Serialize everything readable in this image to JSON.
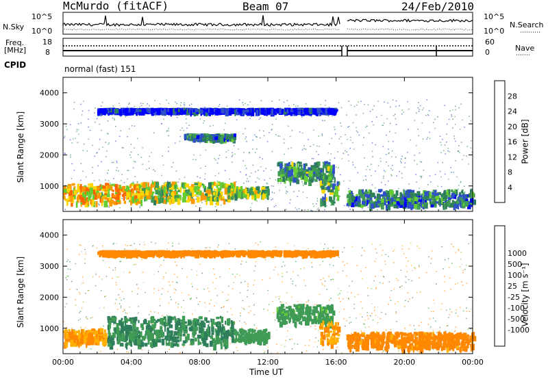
{
  "header": {
    "station": "McMurdo (fitACF)",
    "beam": "Beam 07",
    "date": "24/Feb/2010"
  },
  "top_strip": {
    "nsky_label": "N.Sky",
    "nsky_ticks": [
      "10^5",
      "10^0"
    ],
    "nsearch_label": "N.Search",
    "nsearch_ticks": [
      "10^5",
      "10^0"
    ],
    "freq_label": "Freq.",
    "freq_unit": "[MHz]",
    "freq_ticks": [
      "18",
      "8"
    ],
    "nave_label": "Nave",
    "nave_ticks": [
      "60",
      "0"
    ],
    "cpid_label": "CPID",
    "cpid_value": "normal (fast) 151"
  },
  "colors": {
    "power_scale": [
      "#0000ff",
      "#3050c8",
      "#2e7d5b",
      "#3f9b55",
      "#66cc33",
      "#ffd700",
      "#ff9900",
      "#ff6600",
      "#ff1a00"
    ],
    "velocity_scale": [
      "#ff0000",
      "#ff4d00",
      "#ff8800",
      "#ffb000",
      "#c8c8c8",
      "#c8c8c8",
      "#66cc33",
      "#3f9b55",
      "#2e7d5b",
      "#3050c8",
      "#0000ff"
    ]
  },
  "chart_data": [
    {
      "type": "heatmap",
      "panel": "power",
      "ylabel": "Slant Range [km]",
      "yticks": [
        "1000",
        "2000",
        "3000",
        "4000"
      ],
      "ylim": [
        180,
        4500
      ],
      "xlim": [
        0,
        24
      ],
      "xticks": [
        "00:00",
        "04:00",
        "08:00",
        "12:00",
        "16:00",
        "20:00",
        "00:00"
      ],
      "colorbar_label": "Power [dB]",
      "colorbar_ticks": [
        "4",
        "8",
        "12",
        "16",
        "20",
        "24",
        "28"
      ],
      "colorbar_range": [
        0,
        32
      ],
      "echo_regions": [
        {
          "t0": 0.0,
          "t1": 4.5,
          "r0": 500,
          "r1": 1100,
          "value": 28
        },
        {
          "t0": 4.5,
          "t1": 10.0,
          "r0": 550,
          "r1": 1150,
          "value": 24
        },
        {
          "t0": 10.0,
          "t1": 12.0,
          "r0": 700,
          "r1": 1000,
          "value": 22
        },
        {
          "t0": 12.5,
          "t1": 15.8,
          "r0": 1200,
          "r1": 1800,
          "value": 18
        },
        {
          "t0": 15.0,
          "t1": 16.1,
          "r0": 500,
          "r1": 1400,
          "value": 20
        },
        {
          "t0": 16.6,
          "t1": 24.0,
          "r0": 400,
          "r1": 900,
          "value": 16
        },
        {
          "t0": 2.0,
          "t1": 16.0,
          "r0": 3450,
          "r1": 3520,
          "value": 8
        },
        {
          "t0": 7.0,
          "t1": 10.0,
          "r0": 2550,
          "r1": 2700,
          "value": 16
        }
      ]
    },
    {
      "type": "heatmap",
      "panel": "velocity",
      "ylabel": "Slant Range [km]",
      "yticks": [
        "1000",
        "2000",
        "3000",
        "4000"
      ],
      "ylim": [
        180,
        4500
      ],
      "xlim": [
        0,
        24
      ],
      "xticks": [
        "00:00",
        "04:00",
        "08:00",
        "12:00",
        "16:00",
        "20:00",
        "00:00"
      ],
      "xlabel": "Time UT",
      "colorbar_label": "Velocity [m s⁻¹]",
      "colorbar_ticks": [
        "-1000",
        "-500",
        "-100",
        "-25",
        "25",
        "100",
        "500",
        "1000"
      ],
      "colorbar_range": [
        -1200,
        1200
      ],
      "echo_regions": [
        {
          "t0": 0.0,
          "t1": 2.5,
          "r0": 550,
          "r1": 1000,
          "value": -100
        },
        {
          "t0": 2.5,
          "t1": 10.0,
          "r0": 500,
          "r1": 1400,
          "value": 300
        },
        {
          "t0": 10.0,
          "t1": 12.0,
          "r0": 650,
          "r1": 1000,
          "value": 200
        },
        {
          "t0": 12.5,
          "t1": 15.8,
          "r0": 1200,
          "r1": 1800,
          "value": 150
        },
        {
          "t0": 15.0,
          "t1": 16.1,
          "r0": 500,
          "r1": 1300,
          "value": -100
        },
        {
          "t0": 16.6,
          "t1": 24.0,
          "r0": 400,
          "r1": 900,
          "value": -150
        },
        {
          "t0": 2.0,
          "t1": 16.0,
          "r0": 3450,
          "r1": 3520,
          "value": -200
        }
      ]
    }
  ]
}
